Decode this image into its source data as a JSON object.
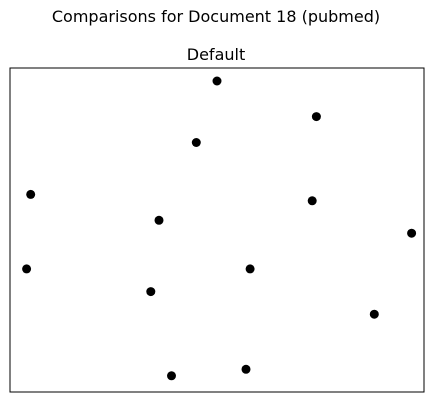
{
  "figure": {
    "suptitle": "Comparisons for Document 18 (pubmed)"
  },
  "chart_data": {
    "type": "scatter",
    "title": "Default",
    "xlabel": "",
    "ylabel": "",
    "axes_ticks_visible": false,
    "grid": false,
    "legend": "none",
    "marker_color": "#000000",
    "series": [
      {
        "points": [
          {
            "x": 0.5,
            "y": 0.96
          },
          {
            "x": 0.74,
            "y": 0.85
          },
          {
            "x": 0.45,
            "y": 0.77
          },
          {
            "x": 0.05,
            "y": 0.61
          },
          {
            "x": 0.73,
            "y": 0.59
          },
          {
            "x": 0.36,
            "y": 0.53
          },
          {
            "x": 0.97,
            "y": 0.49
          },
          {
            "x": 0.04,
            "y": 0.38
          },
          {
            "x": 0.58,
            "y": 0.38
          },
          {
            "x": 0.34,
            "y": 0.31
          },
          {
            "x": 0.88,
            "y": 0.24
          },
          {
            "x": 0.39,
            "y": 0.05
          },
          {
            "x": 0.57,
            "y": 0.07
          }
        ]
      }
    ],
    "xlim": [
      0,
      1
    ],
    "ylim": [
      0,
      1
    ]
  }
}
